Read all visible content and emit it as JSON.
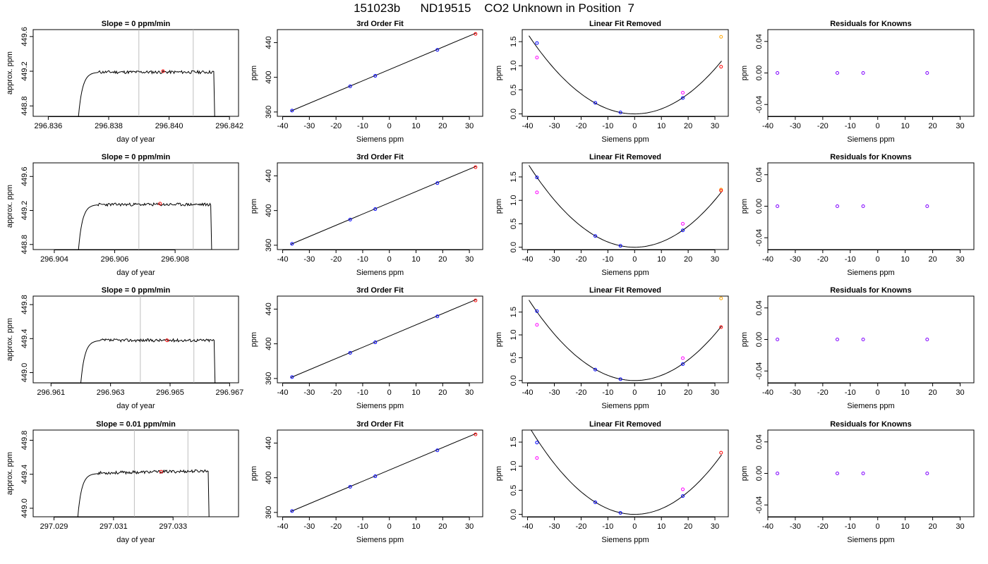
{
  "page": {
    "title": "151023b      ND19515    CO2 Unknown in Position  7"
  },
  "labels": {
    "doy_xlabel": "day of year",
    "doy_ylabel": "approx. ppm",
    "siemens_xlabel": "Siemens ppm",
    "ppm_ylabel": "ppm"
  },
  "colors": {
    "line": "#000000",
    "guide": "#bebebe",
    "blue": "#0000ff",
    "red": "#ff0000",
    "magenta": "#ff00ff",
    "orange": "#ffa500",
    "purple": "#8000ff"
  },
  "chart_data": [
    {
      "row": 1,
      "col": 1,
      "type": "line",
      "kind": "timeseries",
      "title": "Slope =  0  ppm/min",
      "xlabel": "day of year",
      "ylabel": "approx. ppm",
      "xlim": [
        296.8355,
        296.8423
      ],
      "ylim": [
        448.68,
        449.68
      ],
      "xticks": [
        296.836,
        296.838,
        296.84,
        296.842
      ],
      "xticklabels": [
        "296.836",
        "296.838",
        "296.840",
        "296.842"
      ],
      "yticks": [
        448.8,
        449.2,
        449.6
      ],
      "yticklabels": [
        "448.8",
        "449.2",
        "449.6"
      ],
      "guides": [
        296.839,
        296.8408
      ],
      "series": {
        "start": 296.837,
        "end": 296.84148,
        "base": 449.19,
        "dropEnd": 448.68,
        "seed": 11
      },
      "mark": {
        "x": 296.8398,
        "y": 449.2
      }
    },
    {
      "row": 1,
      "col": 2,
      "type": "scatter",
      "kind": "fit",
      "title": "3rd Order Fit",
      "xlabel": "Siemens ppm",
      "ylabel": "ppm",
      "xlim": [
        -42,
        35
      ],
      "ylim": [
        355,
        455
      ],
      "xticks": [
        -40,
        -30,
        -20,
        -10,
        0,
        10,
        20,
        30
      ],
      "xticklabels": [
        "-40",
        "-30",
        "-20",
        "-10",
        "0",
        "10",
        "20",
        "30"
      ],
      "yticks": [
        360,
        400,
        440
      ],
      "yticklabels": [
        "360",
        "400",
        "440"
      ],
      "line": [
        [
          -37,
          361
        ],
        [
          32.5,
          451
        ]
      ],
      "points": [
        {
          "x": -36.5,
          "y": 361.6,
          "color": "blue"
        },
        {
          "x": -14.7,
          "y": 389.6,
          "color": "blue"
        },
        {
          "x": -5.3,
          "y": 401.7,
          "color": "blue"
        },
        {
          "x": 18,
          "y": 431.6,
          "color": "blue"
        },
        {
          "x": 32.3,
          "y": 450.0,
          "color": "red"
        }
      ]
    },
    {
      "row": 1,
      "col": 3,
      "type": "scatter",
      "kind": "resid",
      "title": "Linear Fit Removed",
      "xlabel": "Siemens ppm",
      "ylabel": "ppm",
      "xlim": [
        -42,
        35
      ],
      "ylim": [
        -0.05,
        1.75
      ],
      "xticks": [
        -40,
        -30,
        -20,
        -10,
        0,
        10,
        20,
        30
      ],
      "xticklabels": [
        "-40",
        "-30",
        "-20",
        "-10",
        "0",
        "10",
        "20",
        "30"
      ],
      "yticks": [
        0,
        0.5,
        1,
        1.5
      ],
      "yticklabels": [
        "0.0",
        "0.5",
        "1.0",
        "1.5"
      ],
      "curve": {
        "a": 0.00104,
        "b": 0.0,
        "c": 0.0,
        "xmin": -39.5,
        "xmax": 32.5
      },
      "points": [
        {
          "x": -36.5,
          "y": 1.47,
          "color": "blue"
        },
        {
          "x": -36.5,
          "y": 1.17,
          "color": "magenta"
        },
        {
          "x": -14.7,
          "y": 0.23,
          "color": "blue"
        },
        {
          "x": -5.3,
          "y": 0.03,
          "color": "blue"
        },
        {
          "x": 18,
          "y": 0.33,
          "color": "blue"
        },
        {
          "x": 18,
          "y": 0.44,
          "color": "magenta"
        },
        {
          "x": 32.3,
          "y": 1.6,
          "color": "orange"
        },
        {
          "x": 32.3,
          "y": 0.98,
          "color": "red"
        }
      ]
    },
    {
      "row": 1,
      "col": 4,
      "type": "scatter",
      "kind": "known",
      "title": "Residuals for Knowns",
      "xlabel": "Siemens ppm",
      "ylabel": "ppm",
      "xlim": [
        -40,
        35
      ],
      "ylim": [
        -0.055,
        0.055
      ],
      "xticks": [
        -40,
        -30,
        -20,
        -10,
        0,
        10,
        20,
        30
      ],
      "xticklabels": [
        "-40",
        "-30",
        "-20",
        "-10",
        "0",
        "10",
        "20",
        "30"
      ],
      "yticks": [
        -0.04,
        0,
        0.04
      ],
      "yticklabels": [
        "-0.04",
        "0.00",
        "0.04"
      ],
      "points": [
        {
          "x": -36.5,
          "y": 0,
          "color": "purple"
        },
        {
          "x": -14.7,
          "y": 0,
          "color": "purple"
        },
        {
          "x": -5.3,
          "y": 0,
          "color": "purple"
        },
        {
          "x": 18,
          "y": 0,
          "color": "purple"
        }
      ]
    },
    {
      "row": 2,
      "col": 1,
      "type": "line",
      "kind": "timeseries",
      "title": "Slope =  0  ppm/min",
      "xlabel": "day of year",
      "ylabel": "approx. ppm",
      "xlim": [
        296.9033,
        296.9101
      ],
      "ylim": [
        448.74,
        449.76
      ],
      "xticks": [
        296.904,
        296.906,
        296.908
      ],
      "xticklabels": [
        "296.904",
        "296.906",
        "296.908"
      ],
      "yticks": [
        448.8,
        449.2,
        449.6
      ],
      "yticklabels": [
        "448.8",
        "449.2",
        "449.6"
      ],
      "guides": [
        296.9068,
        296.9086
      ],
      "series": {
        "start": 296.9048,
        "end": 296.90918,
        "base": 449.27,
        "dropEnd": 448.74,
        "seed": 23
      },
      "mark": {
        "x": 296.9075,
        "y": 449.28
      }
    },
    {
      "row": 2,
      "col": 2,
      "type": "scatter",
      "kind": "fit",
      "title": "3rd Order Fit",
      "xlabel": "Siemens ppm",
      "ylabel": "ppm",
      "xlim": [
        -42,
        35
      ],
      "ylim": [
        355,
        455
      ],
      "xticks": [
        -40,
        -30,
        -20,
        -10,
        0,
        10,
        20,
        30
      ],
      "xticklabels": [
        "-40",
        "-30",
        "-20",
        "-10",
        "0",
        "10",
        "20",
        "30"
      ],
      "yticks": [
        360,
        400,
        440
      ],
      "yticklabels": [
        "360",
        "400",
        "440"
      ],
      "line": [
        [
          -37,
          361
        ],
        [
          32.5,
          451
        ]
      ],
      "points": [
        {
          "x": -36.5,
          "y": 361.6,
          "color": "blue"
        },
        {
          "x": -14.7,
          "y": 389.6,
          "color": "blue"
        },
        {
          "x": -5.3,
          "y": 401.7,
          "color": "blue"
        },
        {
          "x": 18,
          "y": 431.6,
          "color": "blue"
        },
        {
          "x": 32.3,
          "y": 450.0,
          "color": "red"
        }
      ]
    },
    {
      "row": 2,
      "col": 3,
      "type": "scatter",
      "kind": "resid",
      "title": "Linear Fit Removed",
      "xlabel": "Siemens ppm",
      "ylabel": "ppm",
      "xlim": [
        -42,
        35
      ],
      "ylim": [
        -0.05,
        1.8
      ],
      "xticks": [
        -40,
        -30,
        -20,
        -10,
        0,
        10,
        20,
        30
      ],
      "xticklabels": [
        "-40",
        "-30",
        "-20",
        "-10",
        "0",
        "10",
        "20",
        "30"
      ],
      "yticks": [
        0,
        0.5,
        1,
        1.5
      ],
      "yticklabels": [
        "0.0",
        "0.5",
        "1.0",
        "1.5"
      ],
      "curve": {
        "a": 0.00112,
        "b": 0.0,
        "c": 0.0,
        "xmin": -39.5,
        "xmax": 32.5
      },
      "points": [
        {
          "x": -36.5,
          "y": 1.49,
          "color": "blue"
        },
        {
          "x": -36.5,
          "y": 1.17,
          "color": "magenta"
        },
        {
          "x": -14.7,
          "y": 0.24,
          "color": "blue"
        },
        {
          "x": -5.3,
          "y": 0.03,
          "color": "blue"
        },
        {
          "x": 18,
          "y": 0.36,
          "color": "blue"
        },
        {
          "x": 18,
          "y": 0.5,
          "color": "magenta"
        },
        {
          "x": 32.3,
          "y": 1.23,
          "color": "orange"
        },
        {
          "x": 32.3,
          "y": 1.21,
          "color": "red"
        }
      ]
    },
    {
      "row": 2,
      "col": 4,
      "type": "scatter",
      "kind": "known",
      "title": "Residuals for Knowns",
      "xlabel": "Siemens ppm",
      "ylabel": "ppm",
      "xlim": [
        -40,
        35
      ],
      "ylim": [
        -0.055,
        0.055
      ],
      "xticks": [
        -40,
        -30,
        -20,
        -10,
        0,
        10,
        20,
        30
      ],
      "xticklabels": [
        "-40",
        "-30",
        "-20",
        "-10",
        "0",
        "10",
        "20",
        "30"
      ],
      "yticks": [
        -0.04,
        0,
        0.04
      ],
      "yticklabels": [
        "-0.04",
        "0.00",
        "0.04"
      ],
      "points": [
        {
          "x": -36.5,
          "y": 0,
          "color": "purple"
        },
        {
          "x": -14.7,
          "y": 0,
          "color": "purple"
        },
        {
          "x": -5.3,
          "y": 0,
          "color": "purple"
        },
        {
          "x": 18,
          "y": 0,
          "color": "purple"
        }
      ]
    },
    {
      "row": 3,
      "col": 1,
      "type": "line",
      "kind": "timeseries",
      "title": "Slope =  0  ppm/min",
      "xlabel": "day of year",
      "ylabel": "approx. ppm",
      "xlim": [
        296.9604,
        296.9673
      ],
      "ylim": [
        448.88,
        449.9
      ],
      "xticks": [
        296.961,
        296.963,
        296.965,
        296.967
      ],
      "xticklabels": [
        "296.961",
        "296.963",
        "296.965",
        "296.967"
      ],
      "yticks": [
        449.0,
        449.4,
        449.8
      ],
      "yticklabels": [
        "449.0",
        "449.4",
        "449.8"
      ],
      "guides": [
        296.964,
        296.9658
      ],
      "series": {
        "start": 296.962,
        "end": 296.96648,
        "base": 449.38,
        "dropEnd": 448.88,
        "seed": 37
      },
      "mark": {
        "x": 296.9649,
        "y": 449.38
      }
    },
    {
      "row": 3,
      "col": 2,
      "type": "scatter",
      "kind": "fit",
      "title": "3rd Order Fit",
      "xlabel": "Siemens ppm",
      "ylabel": "ppm",
      "xlim": [
        -42,
        35
      ],
      "ylim": [
        355,
        455
      ],
      "xticks": [
        -40,
        -30,
        -20,
        -10,
        0,
        10,
        20,
        30
      ],
      "xticklabels": [
        "-40",
        "-30",
        "-20",
        "-10",
        "0",
        "10",
        "20",
        "30"
      ],
      "yticks": [
        360,
        400,
        440
      ],
      "yticklabels": [
        "360",
        "400",
        "440"
      ],
      "line": [
        [
          -37,
          361
        ],
        [
          32.5,
          451
        ]
      ],
      "points": [
        {
          "x": -36.5,
          "y": 361.6,
          "color": "blue"
        },
        {
          "x": -14.7,
          "y": 389.6,
          "color": "blue"
        },
        {
          "x": -5.3,
          "y": 401.7,
          "color": "blue"
        },
        {
          "x": 18,
          "y": 431.6,
          "color": "blue"
        },
        {
          "x": 32.3,
          "y": 450.0,
          "color": "red"
        }
      ]
    },
    {
      "row": 3,
      "col": 3,
      "type": "scatter",
      "kind": "resid",
      "title": "Linear Fit Removed",
      "xlabel": "Siemens ppm",
      "ylabel": "ppm",
      "xlim": [
        -42,
        35
      ],
      "ylim": [
        -0.05,
        1.85
      ],
      "xticks": [
        -40,
        -30,
        -20,
        -10,
        0,
        10,
        20,
        30
      ],
      "xticklabels": [
        "-40",
        "-30",
        "-20",
        "-10",
        "0",
        "10",
        "20",
        "30"
      ],
      "yticks": [
        0,
        0.5,
        1,
        1.5
      ],
      "yticklabels": [
        "0.0",
        "0.5",
        "1.0",
        "1.5"
      ],
      "curve": {
        "a": 0.00113,
        "b": 0.0,
        "c": 0.0,
        "xmin": -39.5,
        "xmax": 32.5
      },
      "points": [
        {
          "x": -36.5,
          "y": 1.52,
          "color": "blue"
        },
        {
          "x": -36.5,
          "y": 1.22,
          "color": "magenta"
        },
        {
          "x": -14.7,
          "y": 0.24,
          "color": "blue"
        },
        {
          "x": -5.3,
          "y": 0.03,
          "color": "blue"
        },
        {
          "x": 18,
          "y": 0.36,
          "color": "blue"
        },
        {
          "x": 18,
          "y": 0.49,
          "color": "magenta"
        },
        {
          "x": 32.3,
          "y": 1.8,
          "color": "orange"
        },
        {
          "x": 32.3,
          "y": 1.17,
          "color": "red"
        }
      ]
    },
    {
      "row": 3,
      "col": 4,
      "type": "scatter",
      "kind": "known",
      "title": "Residuals for Knowns",
      "xlabel": "Siemens ppm",
      "ylabel": "ppm",
      "xlim": [
        -40,
        35
      ],
      "ylim": [
        -0.055,
        0.055
      ],
      "xticks": [
        -40,
        -30,
        -20,
        -10,
        0,
        10,
        20,
        30
      ],
      "xticklabels": [
        "-40",
        "-30",
        "-20",
        "-10",
        "0",
        "10",
        "20",
        "30"
      ],
      "yticks": [
        -0.04,
        0,
        0.04
      ],
      "yticklabels": [
        "-0.04",
        "0.00",
        "0.04"
      ],
      "points": [
        {
          "x": -36.5,
          "y": 0,
          "color": "purple"
        },
        {
          "x": -14.7,
          "y": 0,
          "color": "purple"
        },
        {
          "x": -5.3,
          "y": 0,
          "color": "purple"
        },
        {
          "x": 18,
          "y": 0,
          "color": "purple"
        }
      ]
    },
    {
      "row": 4,
      "col": 1,
      "type": "line",
      "kind": "timeseries",
      "title": "Slope =  0.01  ppm/min",
      "xlabel": "day of year",
      "ylabel": "approx. ppm",
      "xlim": [
        297.0283,
        297.0352
      ],
      "ylim": [
        448.9,
        449.92
      ],
      "xticks": [
        297.029,
        297.031,
        297.033
      ],
      "xticklabels": [
        "297.029",
        "297.031",
        "297.033"
      ],
      "yticks": [
        449.0,
        449.4,
        449.8
      ],
      "yticklabels": [
        "449.0",
        "449.4",
        "449.8"
      ],
      "guides": [
        297.0317,
        297.0335
      ],
      "series": {
        "start": 297.0298,
        "end": 297.03418,
        "base": 449.41,
        "dropEnd": 448.9,
        "seed": 53,
        "trend": 0.03
      },
      "mark": {
        "x": 297.0326,
        "y": 449.43
      }
    },
    {
      "row": 4,
      "col": 2,
      "type": "scatter",
      "kind": "fit",
      "title": "3rd Order Fit",
      "xlabel": "Siemens ppm",
      "ylabel": "ppm",
      "xlim": [
        -42,
        35
      ],
      "ylim": [
        355,
        455
      ],
      "xticks": [
        -40,
        -30,
        -20,
        -10,
        0,
        10,
        20,
        30
      ],
      "xticklabels": [
        "-40",
        "-30",
        "-20",
        "-10",
        "0",
        "10",
        "20",
        "30"
      ],
      "yticks": [
        360,
        400,
        440
      ],
      "yticklabels": [
        "360",
        "400",
        "440"
      ],
      "line": [
        [
          -37,
          361
        ],
        [
          32.5,
          451
        ]
      ],
      "points": [
        {
          "x": -36.5,
          "y": 361.6,
          "color": "blue"
        },
        {
          "x": -14.7,
          "y": 389.6,
          "color": "blue"
        },
        {
          "x": -5.3,
          "y": 401.7,
          "color": "blue"
        },
        {
          "x": 18,
          "y": 431.6,
          "color": "blue"
        },
        {
          "x": 32.3,
          "y": 450.0,
          "color": "red"
        }
      ]
    },
    {
      "row": 4,
      "col": 3,
      "type": "scatter",
      "kind": "resid",
      "title": "Linear Fit Removed",
      "xlabel": "Siemens ppm",
      "ylabel": "ppm",
      "xlim": [
        -42,
        35
      ],
      "ylim": [
        -0.05,
        1.75
      ],
      "xticks": [
        -40,
        -30,
        -20,
        -10,
        0,
        10,
        20,
        30
      ],
      "xticklabels": [
        "-40",
        "-30",
        "-20",
        "-10",
        "0",
        "10",
        "20",
        "30"
      ],
      "yticks": [
        0,
        0.5,
        1,
        1.5
      ],
      "yticklabels": [
        "0.0",
        "0.5",
        "1.0",
        "1.5"
      ],
      "curve": {
        "a": 0.00117,
        "b": 0.0,
        "c": 0.0,
        "xmin": -39.5,
        "xmax": 32.5
      },
      "points": [
        {
          "x": -36.5,
          "y": 1.49,
          "color": "blue"
        },
        {
          "x": -36.5,
          "y": 1.17,
          "color": "magenta"
        },
        {
          "x": -14.7,
          "y": 0.25,
          "color": "blue"
        },
        {
          "x": -5.3,
          "y": 0.03,
          "color": "blue"
        },
        {
          "x": 18,
          "y": 0.38,
          "color": "blue"
        },
        {
          "x": 18,
          "y": 0.52,
          "color": "magenta"
        },
        {
          "x": 32.3,
          "y": 1.28,
          "color": "red"
        }
      ]
    },
    {
      "row": 4,
      "col": 4,
      "type": "scatter",
      "kind": "known",
      "title": "Residuals for Knowns",
      "xlabel": "Siemens ppm",
      "ylabel": "ppm",
      "xlim": [
        -40,
        35
      ],
      "ylim": [
        -0.055,
        0.055
      ],
      "xticks": [
        -40,
        -30,
        -20,
        -10,
        0,
        10,
        20,
        30
      ],
      "xticklabels": [
        "-40",
        "-30",
        "-20",
        "-10",
        "0",
        "10",
        "20",
        "30"
      ],
      "yticks": [
        -0.04,
        0,
        0.04
      ],
      "yticklabels": [
        "-0.04",
        "0.00",
        "0.04"
      ],
      "points": [
        {
          "x": -36.5,
          "y": 0,
          "color": "purple"
        },
        {
          "x": -14.7,
          "y": 0,
          "color": "purple"
        },
        {
          "x": -5.3,
          "y": 0,
          "color": "purple"
        },
        {
          "x": 18,
          "y": 0,
          "color": "purple"
        }
      ]
    }
  ]
}
